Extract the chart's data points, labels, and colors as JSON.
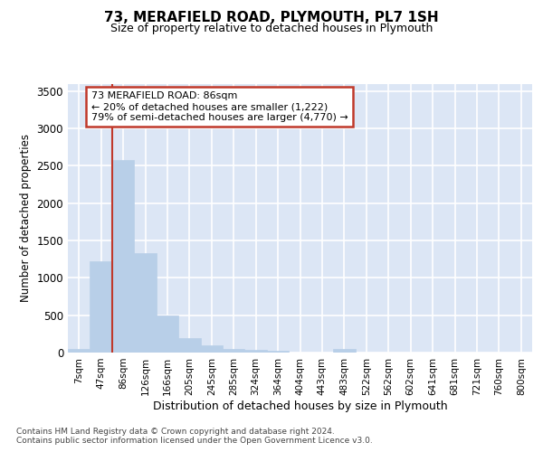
{
  "title": "73, MERAFIELD ROAD, PLYMOUTH, PL7 1SH",
  "subtitle": "Size of property relative to detached houses in Plymouth",
  "xlabel": "Distribution of detached houses by size in Plymouth",
  "ylabel": "Number of detached properties",
  "bar_labels": [
    "7sqm",
    "47sqm",
    "86sqm",
    "126sqm",
    "166sqm",
    "205sqm",
    "245sqm",
    "285sqm",
    "324sqm",
    "364sqm",
    "404sqm",
    "443sqm",
    "483sqm",
    "522sqm",
    "562sqm",
    "602sqm",
    "641sqm",
    "681sqm",
    "721sqm",
    "760sqm",
    "800sqm"
  ],
  "bar_values": [
    50,
    1222,
    2580,
    1335,
    500,
    195,
    100,
    50,
    40,
    30,
    0,
    0,
    45,
    0,
    0,
    0,
    0,
    0,
    0,
    0,
    0
  ],
  "bar_color": "#b8cfe8",
  "highlight_index": 2,
  "vline_color": "#c0392b",
  "annotation_lines": [
    "73 MERAFIELD ROAD: 86sqm",
    "← 20% of detached houses are smaller (1,222)",
    "79% of semi-detached houses are larger (4,770) →"
  ],
  "annotation_box_edgecolor": "#c0392b",
  "ylim": [
    0,
    3600
  ],
  "yticks": [
    0,
    500,
    1000,
    1500,
    2000,
    2500,
    3000,
    3500
  ],
  "bg_color": "#dce6f5",
  "grid_color": "#ffffff",
  "footer_line1": "Contains HM Land Registry data © Crown copyright and database right 2024.",
  "footer_line2": "Contains public sector information licensed under the Open Government Licence v3.0."
}
